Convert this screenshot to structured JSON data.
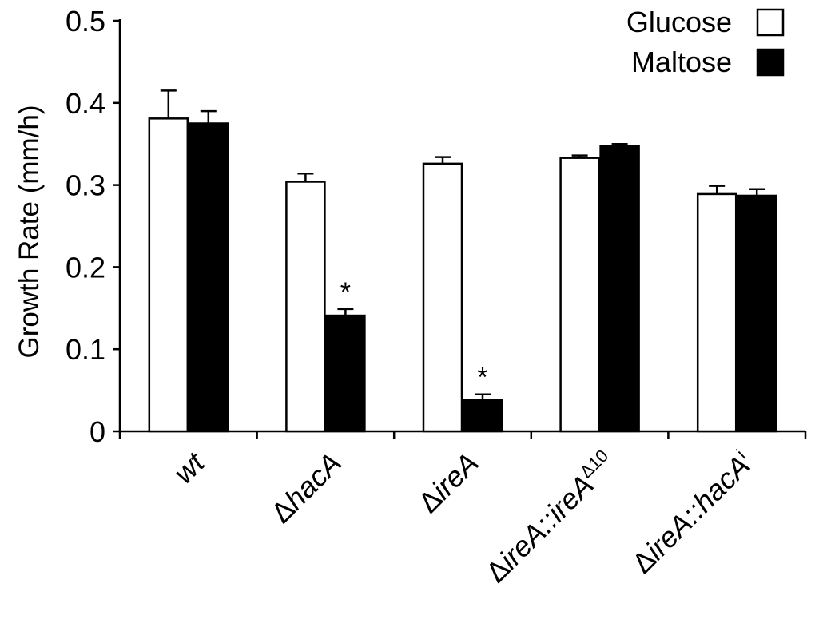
{
  "chart_data": {
    "type": "bar",
    "ylabel": "Growth Rate (mm/h)",
    "ylim": [
      0,
      0.5
    ],
    "yticks": [
      "0",
      "0.1",
      "0.2",
      "0.3",
      "0.4",
      "0.5"
    ],
    "grid": false,
    "legend_position": "top-right",
    "categories": [
      {
        "label_italic": "wt",
        "label_prefix": "",
        "label_sup": ""
      },
      {
        "label_prefix": "Δ",
        "label_italic": "hacA",
        "label_sup": ""
      },
      {
        "label_prefix": "Δ",
        "label_italic": "ireA",
        "label_sup": ""
      },
      {
        "label_prefix": "Δ",
        "label_italic": "ireA::ireA",
        "label_sup": "Δ10"
      },
      {
        "label_prefix": "Δ",
        "label_italic": "ireA::hacA",
        "label_sup": "i"
      }
    ],
    "series": [
      {
        "name": "Glucose",
        "color": "#ffffff",
        "values": [
          0.381,
          0.304,
          0.326,
          0.333,
          0.289
        ],
        "errors": [
          0.034,
          0.01,
          0.008,
          0.003,
          0.01
        ],
        "markers": [
          "",
          "",
          "",
          "",
          ""
        ]
      },
      {
        "name": "Maltose",
        "color": "#000000",
        "values": [
          0.375,
          0.141,
          0.038,
          0.348,
          0.287
        ],
        "errors": [
          0.015,
          0.008,
          0.007,
          0.002,
          0.008
        ],
        "markers": [
          "",
          "*",
          "*",
          "",
          ""
        ]
      }
    ]
  }
}
